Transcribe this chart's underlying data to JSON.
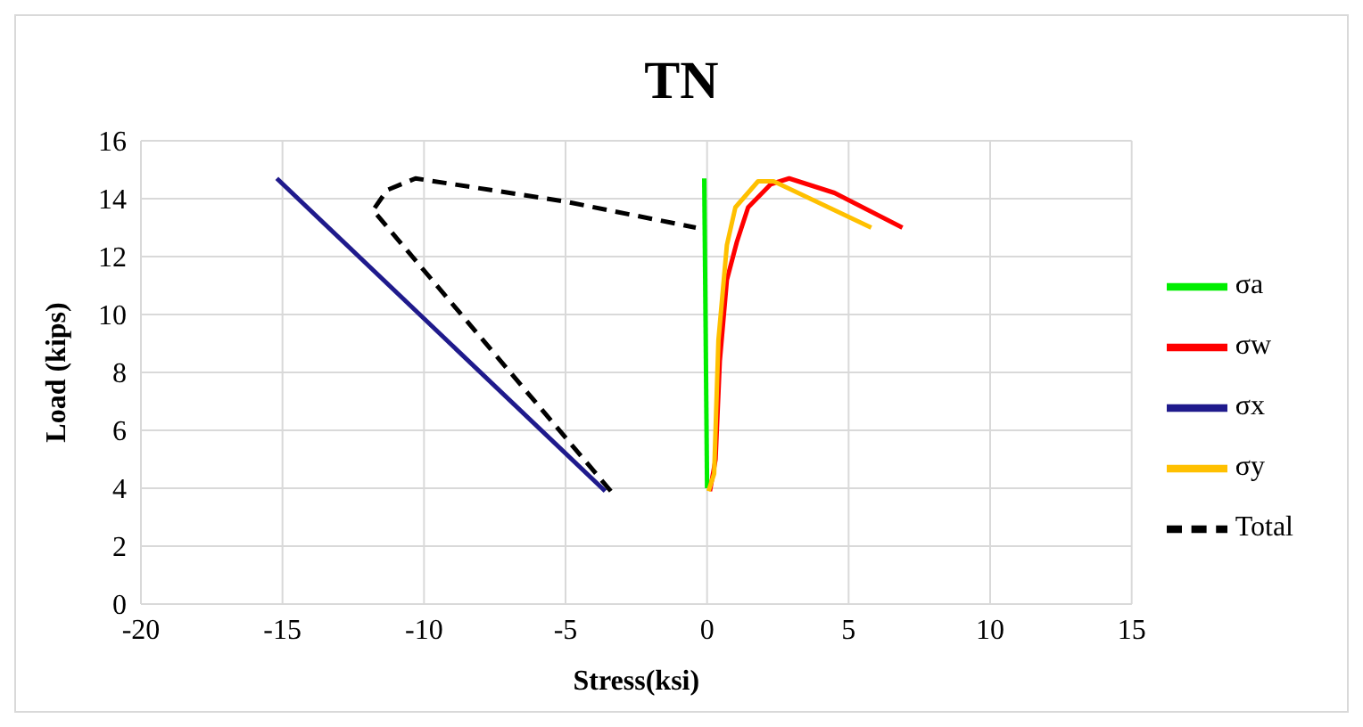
{
  "chart_data": {
    "type": "line",
    "title": "TN",
    "xlabel": "Stress(ksi)",
    "ylabel": "Load (kips)",
    "xlim": [
      -20,
      15
    ],
    "xticks": [
      -20,
      -15,
      -10,
      -5,
      0,
      5,
      10,
      15
    ],
    "ylim": [
      0,
      16
    ],
    "yticks": [
      0,
      2,
      4,
      6,
      8,
      10,
      12,
      14,
      16
    ],
    "grid": true,
    "legend": "right",
    "marker": "none",
    "series": [
      {
        "name": "σa",
        "color": "#00ee00",
        "x": [
          -0.1,
          0
        ],
        "values": [
          14.7,
          4
        ]
      },
      {
        "name": "σw",
        "color": "#ff0000",
        "x": [
          0.1,
          0.3,
          0.45,
          0.7,
          1.05,
          1.45,
          2.25,
          2.9,
          4.5,
          6.9
        ],
        "values": [
          3.9,
          5,
          8.4,
          11.2,
          12.5,
          13.7,
          14.5,
          14.7,
          14.2,
          13.0
        ]
      },
      {
        "name": "σx",
        "color": "#1f1a8c",
        "x": [
          -15.2,
          -3.6
        ],
        "values": [
          14.7,
          3.9
        ]
      },
      {
        "name": "σy",
        "color": "#ffc000",
        "x": [
          0.05,
          0.25,
          0.4,
          0.7,
          1.0,
          1.8,
          2.35,
          5.8
        ],
        "values": [
          3.9,
          4.5,
          9.1,
          12.4,
          13.7,
          14.6,
          14.6,
          13.0
        ]
      },
      {
        "name": "Total",
        "color": "#000000",
        "line_style": "dashed",
        "x": [
          -3.4,
          -11.8,
          -11.3,
          -10.3,
          -5,
          -0.4
        ],
        "values": [
          3.9,
          13.6,
          14.3,
          14.7,
          13.9,
          13.0
        ]
      }
    ]
  }
}
